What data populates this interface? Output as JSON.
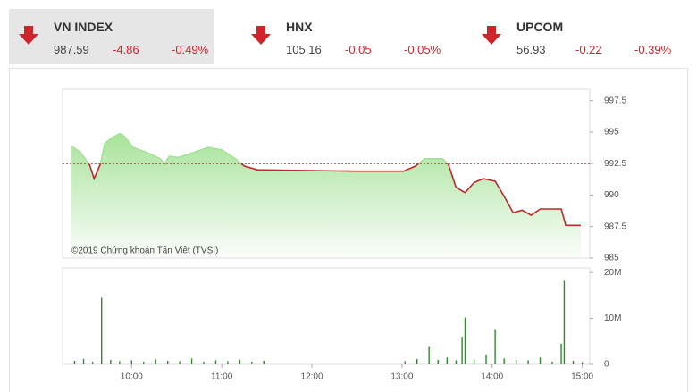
{
  "header": {
    "indices": [
      {
        "name": "VN INDEX",
        "value": "987.59",
        "change": "-4.86",
        "pct": "-0.49%"
      },
      {
        "name": "HNX",
        "value": "105.16",
        "change": "-0.05",
        "pct": "-0.05%"
      },
      {
        "name": "UPCOM",
        "value": "56.93",
        "change": "-0.22",
        "pct": "-0.39%"
      }
    ]
  },
  "chart_data": [
    {
      "type": "area",
      "annotation": "©2019 Chứng khoán Tân Việt (TVSI)",
      "x": [
        560,
        566,
        572,
        575,
        579,
        582,
        586,
        592,
        595,
        601,
        610,
        619,
        622,
        625,
        631,
        639,
        651,
        660,
        669,
        675,
        684,
        689,
        748,
        781,
        789,
        795,
        807,
        811,
        816,
        822,
        828,
        834,
        842,
        848,
        854,
        860,
        866,
        872,
        886,
        889,
        899
      ],
      "values": [
        993.9,
        993.4,
        992.4,
        991.3,
        992.4,
        994.1,
        994.5,
        994.9,
        994.7,
        993.8,
        993.4,
        992.9,
        992.5,
        993.1,
        993.0,
        993.3,
        993.8,
        993.6,
        992.9,
        992.3,
        992.0,
        992.0,
        991.9,
        991.9,
        992.3,
        992.9,
        992.9,
        992.4,
        990.6,
        990.2,
        991.0,
        991.3,
        991.1,
        989.9,
        988.6,
        988.8,
        988.4,
        988.9,
        988.9,
        987.6,
        987.6
      ],
      "color": "#c0282a",
      "fill_color": "#9ee08f",
      "reference_line": 992.5,
      "xlim": [
        554,
        905
      ],
      "ylim": [
        985,
        998.4
      ],
      "yticks": [
        985,
        987.5,
        990,
        992.5,
        995,
        997.5
      ]
    },
    {
      "type": "bar",
      "x": [
        562,
        568,
        574,
        580,
        586,
        592,
        600,
        608,
        616,
        624,
        632,
        640,
        648,
        656,
        664,
        672,
        680,
        688,
        782,
        790,
        798,
        804,
        810,
        816,
        820,
        822,
        828,
        836,
        842,
        848,
        856,
        864,
        872,
        880,
        886,
        888,
        894,
        900
      ],
      "values": [
        0.8,
        1.2,
        0.6,
        14.5,
        1,
        0.7,
        0.9,
        0.6,
        1.1,
        0.8,
        0.7,
        1.3,
        0.6,
        0.9,
        0.7,
        1,
        0.6,
        0.8,
        0.7,
        1.2,
        3.8,
        1,
        1.5,
        0.9,
        6,
        10.2,
        1.1,
        2,
        7.5,
        1.3,
        1,
        0.9,
        1.5,
        0.6,
        4.5,
        18.2,
        0.8,
        0.5
      ],
      "color": "#2e8b2e",
      "xlim": [
        554,
        905
      ],
      "ylim": [
        0,
        21
      ],
      "yticks": [
        0,
        {
          "value": 10,
          "label": "10M"
        },
        {
          "value": 20,
          "label": "20M"
        }
      ],
      "xticks": [
        {
          "value": 600,
          "label": "10:00"
        },
        {
          "value": 660,
          "label": "11:00"
        },
        {
          "value": 720,
          "label": "12:00"
        },
        {
          "value": 780,
          "label": "13:00"
        },
        {
          "value": 840,
          "label": "14:00"
        },
        {
          "value": 900,
          "label": "15:00"
        }
      ]
    }
  ]
}
